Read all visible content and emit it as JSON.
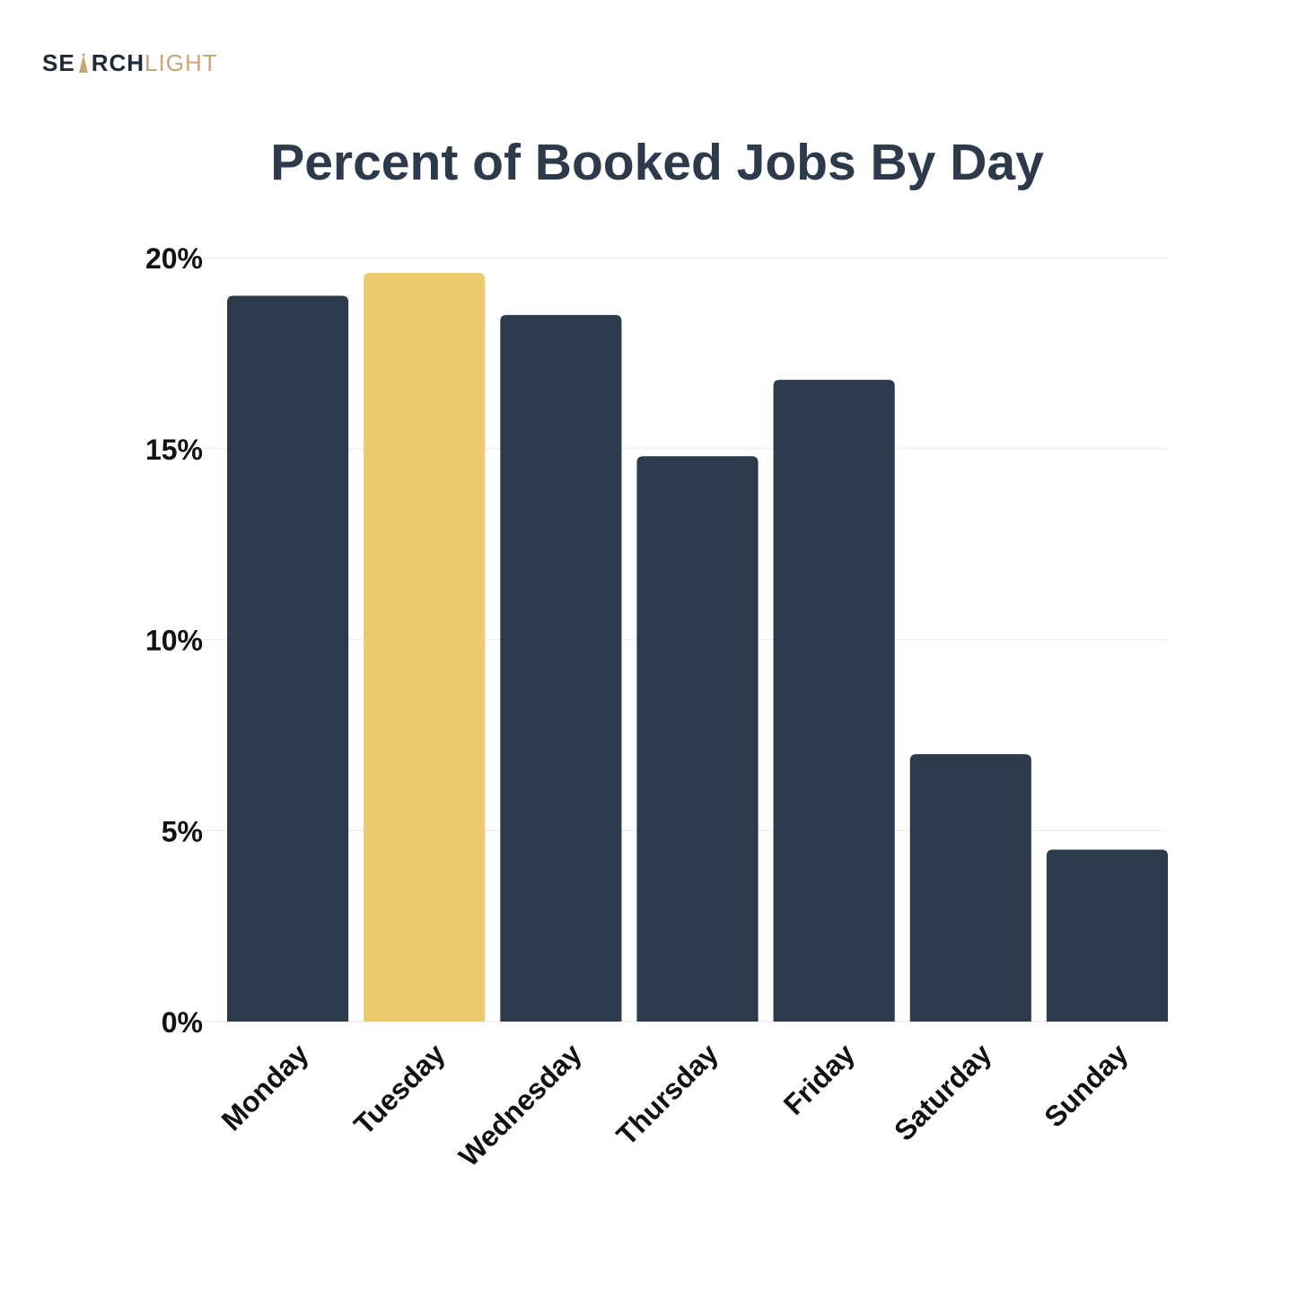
{
  "brand": {
    "logo_part1": "SE",
    "logo_part2": "RCH",
    "logo_part3": "LIGHT",
    "dark_color": "#1f2937",
    "gold_color": "#c9a775"
  },
  "chart_data": {
    "type": "bar",
    "title": "Percent of Booked Jobs By Day",
    "xlabel": "",
    "ylabel": "",
    "categories": [
      "Monday",
      "Tuesday",
      "Wednesday",
      "Thursday",
      "Friday",
      "Saturday",
      "Sunday"
    ],
    "values": [
      19.0,
      19.6,
      18.5,
      14.8,
      16.8,
      7.0,
      4.5
    ],
    "unit": "%",
    "ylim": [
      0,
      20
    ],
    "yticks": [
      0,
      5,
      10,
      15,
      20
    ],
    "ytick_labels": [
      "0%",
      "5%",
      "10%",
      "15%",
      "20%"
    ],
    "grid": true,
    "highlight_index": 1,
    "bar_color": "#2d3a4b",
    "highlight_color": "#ebcb6e"
  }
}
